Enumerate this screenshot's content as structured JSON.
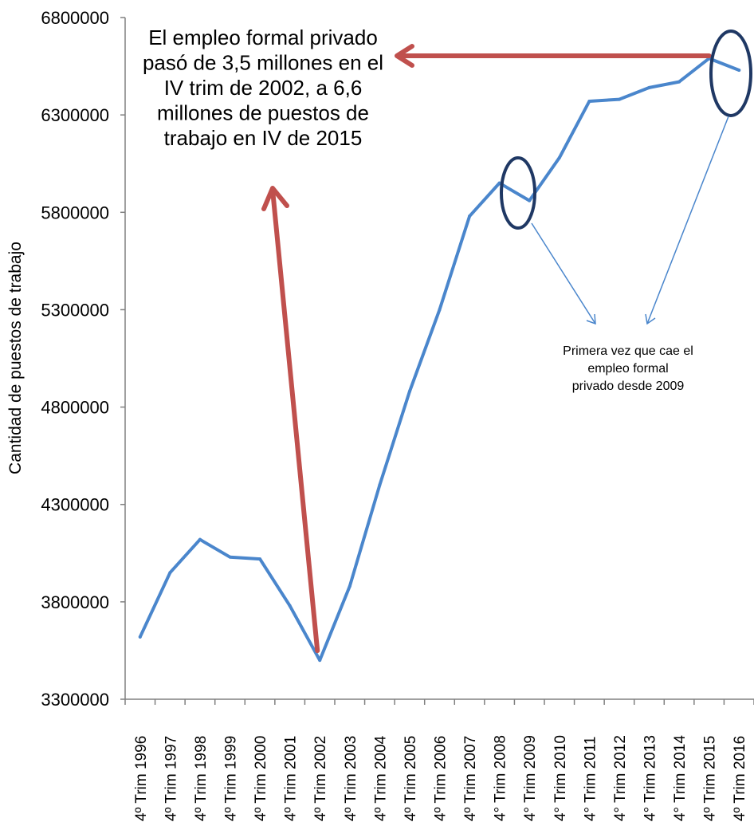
{
  "chart_data": {
    "type": "line",
    "title": "",
    "xlabel": "",
    "ylabel": "Cantidad de puestos de trabajo",
    "ylim": [
      3300000,
      6800000
    ],
    "yticks": [
      3300000,
      3800000,
      4300000,
      4800000,
      5300000,
      5800000,
      6300000,
      6800000
    ],
    "ytick_labels": [
      "3300000",
      "3800000",
      "4300000",
      "4800000",
      "5300000",
      "5800000",
      "6300000",
      "6800000"
    ],
    "grid": false,
    "legend": "none",
    "categories": [
      "4º Trim 1996",
      "4º Trim 1997",
      "4º Trim 1998",
      "4º Trim 1999",
      "4º Trim 2000",
      "4º Trim 2001",
      "4º Trim 2002",
      "4º Trim 2003",
      "4º Trim 2004",
      "4º Trim 2005",
      "4º Trim 2006",
      "4º Trim 2007",
      "4° Trim 2008",
      "4° Trim 2009",
      "4° Trim 2010",
      "4° Trim 2011",
      "4° Trim 2012",
      "4° Trim 2013",
      "4° Trim 2014",
      "4º Trim 2015",
      "4º Trim 2016"
    ],
    "series": [
      {
        "name": "",
        "color": "#4A86CC",
        "values": [
          3620000,
          3950000,
          4120000,
          4030000,
          4020000,
          3780000,
          3500000,
          3880000,
          4400000,
          4880000,
          5300000,
          5780000,
          5950000,
          5860000,
          6080000,
          6370000,
          6380000,
          6440000,
          6470000,
          6590000,
          6530000
        ]
      }
    ],
    "annotations": {
      "main_text": [
        "El empleo formal privado",
        "pasó de 3,5 millones en el",
        "IV trim de 2002, a 6,6",
        "millones de puestos de",
        "trabajo en IV de 2015"
      ],
      "secondary_text": [
        "Primera vez que cae el",
        "empleo formal",
        "privado desde 2009"
      ],
      "arrow_color": "#C0504D",
      "circle_color": "#1F3864",
      "thin_arrow_color": "#4A86CC"
    }
  }
}
